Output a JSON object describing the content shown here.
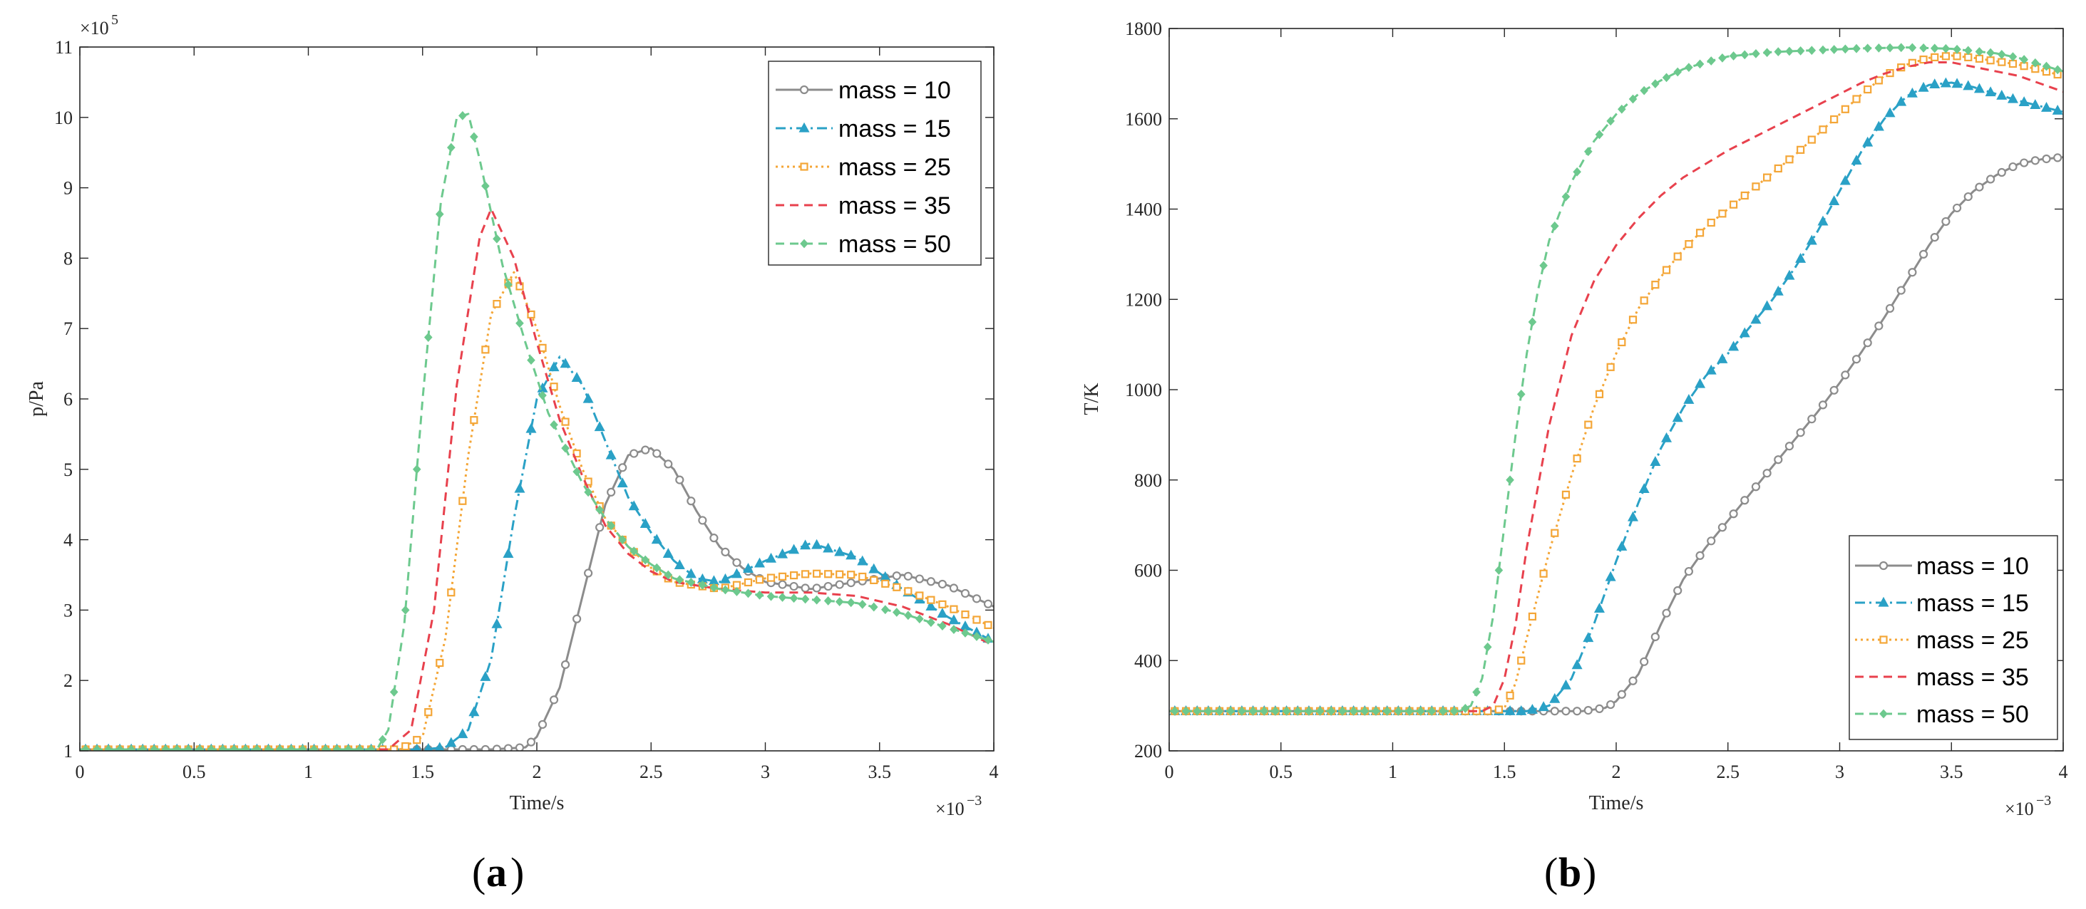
{
  "panels": [
    {
      "caption_open": "(",
      "caption_letter": "a",
      "caption_close": ")",
      "ylabel": "p/Pa",
      "xlabel": "Time/s",
      "x_exponent_base": "×10",
      "x_exponent": "−3",
      "y_exponent_base": "×10",
      "y_exponent": "5",
      "xlim": [
        0,
        4
      ],
      "ylim": [
        1,
        11
      ],
      "xticks": [
        0,
        0.5,
        1,
        1.5,
        2,
        2.5,
        3,
        3.5,
        4
      ],
      "xtick_labels": [
        "0",
        "0.5",
        "1",
        "1.5",
        "2",
        "2.5",
        "3",
        "3.5",
        "4"
      ],
      "yticks": [
        1,
        2,
        3,
        4,
        5,
        6,
        7,
        8,
        9,
        10,
        11
      ],
      "ytick_labels": [
        "1",
        "2",
        "3",
        "4",
        "5",
        "6",
        "7",
        "8",
        "9",
        "10",
        "11"
      ],
      "legend_position": "top-right"
    },
    {
      "caption_open": "(",
      "caption_letter": "b",
      "caption_close": ")",
      "ylabel": "T/K",
      "xlabel": "Time/s",
      "x_exponent_base": "×10",
      "x_exponent": "−3",
      "xlim": [
        0,
        4
      ],
      "ylim": [
        200,
        1800
      ],
      "xticks": [
        0,
        0.5,
        1,
        1.5,
        2,
        2.5,
        3,
        3.5,
        4
      ],
      "xtick_labels": [
        "0",
        "0.5",
        "1",
        "1.5",
        "2",
        "2.5",
        "3",
        "3.5",
        "4"
      ],
      "yticks": [
        200,
        400,
        600,
        800,
        1000,
        1200,
        1400,
        1600,
        1800
      ],
      "ytick_labels": [
        "200",
        "400",
        "600",
        "800",
        "1000",
        "1200",
        "1400",
        "1600",
        "1800"
      ],
      "legend_position": "bottom-right"
    }
  ],
  "series_styles": [
    {
      "name": "mass = 10",
      "color": "#8c8c8c",
      "dash": "",
      "marker": "circle"
    },
    {
      "name": "mass = 15",
      "color": "#2aa1c6",
      "dash": "dashdot",
      "marker": "triangle"
    },
    {
      "name": "mass = 25",
      "color": "#f4a637",
      "dash": "dotted",
      "marker": "square"
    },
    {
      "name": "mass = 35",
      "color": "#e8414d",
      "dash": "dashed",
      "marker": "none"
    },
    {
      "name": "mass = 50",
      "color": "#6dc98e",
      "dash": "dashed",
      "marker": "diamond"
    }
  ],
  "chart_data": [
    {
      "type": "line",
      "title": "",
      "xlabel": "Time/s (×10^-3)",
      "ylabel": "p/Pa (×10^5)",
      "xlim": [
        0,
        4
      ],
      "ylim": [
        1,
        11
      ],
      "grid": false,
      "series": [
        {
          "name": "mass = 10",
          "points": [
            [
              0,
              1.02
            ],
            [
              1.8,
              1.02
            ],
            [
              1.95,
              1.05
            ],
            [
              2.0,
              1.2
            ],
            [
              2.1,
              1.9
            ],
            [
              2.2,
              3.2
            ],
            [
              2.3,
              4.5
            ],
            [
              2.4,
              5.2
            ],
            [
              2.5,
              5.3
            ],
            [
              2.6,
              5.0
            ],
            [
              2.7,
              4.4
            ],
            [
              2.8,
              3.9
            ],
            [
              2.9,
              3.6
            ],
            [
              3.0,
              3.4
            ],
            [
              3.2,
              3.3
            ],
            [
              3.4,
              3.4
            ],
            [
              3.6,
              3.5
            ],
            [
              3.8,
              3.35
            ],
            [
              4.0,
              3.05
            ]
          ]
        },
        {
          "name": "mass = 15",
          "points": [
            [
              0,
              1.02
            ],
            [
              1.5,
              1.02
            ],
            [
              1.6,
              1.05
            ],
            [
              1.7,
              1.3
            ],
            [
              1.8,
              2.3
            ],
            [
              1.9,
              4.3
            ],
            [
              2.0,
              6.0
            ],
            [
              2.1,
              6.6
            ],
            [
              2.2,
              6.2
            ],
            [
              2.3,
              5.4
            ],
            [
              2.4,
              4.6
            ],
            [
              2.5,
              4.1
            ],
            [
              2.6,
              3.7
            ],
            [
              2.7,
              3.45
            ],
            [
              2.8,
              3.4
            ],
            [
              2.9,
              3.55
            ],
            [
              3.0,
              3.7
            ],
            [
              3.2,
              3.95
            ],
            [
              3.4,
              3.75
            ],
            [
              3.6,
              3.3
            ],
            [
              3.8,
              2.9
            ],
            [
              4.0,
              2.55
            ]
          ]
        },
        {
          "name": "mass = 25",
          "points": [
            [
              0,
              1.02
            ],
            [
              1.4,
              1.02
            ],
            [
              1.5,
              1.2
            ],
            [
              1.6,
              2.6
            ],
            [
              1.7,
              5.2
            ],
            [
              1.8,
              7.2
            ],
            [
              1.9,
              7.8
            ],
            [
              2.0,
              7.0
            ],
            [
              2.1,
              5.9
            ],
            [
              2.2,
              5.0
            ],
            [
              2.3,
              4.3
            ],
            [
              2.4,
              3.9
            ],
            [
              2.5,
              3.6
            ],
            [
              2.6,
              3.4
            ],
            [
              2.8,
              3.3
            ],
            [
              3.0,
              3.45
            ],
            [
              3.2,
              3.52
            ],
            [
              3.4,
              3.5
            ],
            [
              3.6,
              3.3
            ],
            [
              3.8,
              3.05
            ],
            [
              4.0,
              2.75
            ]
          ]
        },
        {
          "name": "mass = 35",
          "points": [
            [
              0,
              1.02
            ],
            [
              1.35,
              1.02
            ],
            [
              1.45,
              1.3
            ],
            [
              1.55,
              3.0
            ],
            [
              1.65,
              6.2
            ],
            [
              1.75,
              8.3
            ],
            [
              1.8,
              8.7
            ],
            [
              1.9,
              8.0
            ],
            [
              2.0,
              6.8
            ],
            [
              2.1,
              5.7
            ],
            [
              2.2,
              4.9
            ],
            [
              2.3,
              4.2
            ],
            [
              2.4,
              3.8
            ],
            [
              2.5,
              3.55
            ],
            [
              2.6,
              3.4
            ],
            [
              2.8,
              3.3
            ],
            [
              3.0,
              3.25
            ],
            [
              3.2,
              3.25
            ],
            [
              3.4,
              3.2
            ],
            [
              3.6,
              3.05
            ],
            [
              3.8,
              2.8
            ],
            [
              4.0,
              2.5
            ]
          ]
        },
        {
          "name": "mass = 50",
          "points": [
            [
              0,
              1.02
            ],
            [
              1.3,
              1.02
            ],
            [
              1.35,
              1.3
            ],
            [
              1.42,
              2.8
            ],
            [
              1.5,
              6.0
            ],
            [
              1.58,
              8.8
            ],
            [
              1.65,
              10.0
            ],
            [
              1.7,
              10.05
            ],
            [
              1.75,
              9.4
            ],
            [
              1.85,
              7.9
            ],
            [
              1.95,
              6.8
            ],
            [
              2.05,
              5.8
            ],
            [
              2.2,
              4.8
            ],
            [
              2.3,
              4.3
            ],
            [
              2.4,
              3.9
            ],
            [
              2.5,
              3.65
            ],
            [
              2.6,
              3.45
            ],
            [
              2.8,
              3.3
            ],
            [
              3.0,
              3.2
            ],
            [
              3.2,
              3.15
            ],
            [
              3.4,
              3.1
            ],
            [
              3.6,
              2.95
            ],
            [
              3.8,
              2.75
            ],
            [
              4.0,
              2.55
            ]
          ]
        }
      ]
    },
    {
      "type": "line",
      "title": "",
      "xlabel": "Time/s (×10^-3)",
      "ylabel": "T/K",
      "xlim": [
        0,
        4
      ],
      "ylim": [
        200,
        1800
      ],
      "grid": false,
      "series": [
        {
          "name": "mass = 10",
          "points": [
            [
              0,
              288
            ],
            [
              1.85,
              288
            ],
            [
              1.95,
              295
            ],
            [
              2.0,
              310
            ],
            [
              2.1,
              370
            ],
            [
              2.2,
              480
            ],
            [
              2.3,
              580
            ],
            [
              2.4,
              650
            ],
            [
              2.5,
              710
            ],
            [
              2.6,
              770
            ],
            [
              2.7,
              830
            ],
            [
              2.8,
              890
            ],
            [
              2.9,
              950
            ],
            [
              3.0,
              1015
            ],
            [
              3.1,
              1085
            ],
            [
              3.2,
              1160
            ],
            [
              3.3,
              1240
            ],
            [
              3.4,
              1320
            ],
            [
              3.5,
              1390
            ],
            [
              3.6,
              1440
            ],
            [
              3.7,
              1475
            ],
            [
              3.8,
              1500
            ],
            [
              3.9,
              1510
            ],
            [
              4.0,
              1515
            ]
          ]
        },
        {
          "name": "mass = 15",
          "points": [
            [
              0,
              288
            ],
            [
              1.6,
              288
            ],
            [
              1.7,
              300
            ],
            [
              1.8,
              360
            ],
            [
              1.9,
              480
            ],
            [
              2.0,
              620
            ],
            [
              2.1,
              750
            ],
            [
              2.2,
              870
            ],
            [
              2.3,
              960
            ],
            [
              2.4,
              1030
            ],
            [
              2.5,
              1080
            ],
            [
              2.6,
              1140
            ],
            [
              2.7,
              1200
            ],
            [
              2.8,
              1270
            ],
            [
              2.9,
              1350
            ],
            [
              3.0,
              1440
            ],
            [
              3.1,
              1530
            ],
            [
              3.2,
              1600
            ],
            [
              3.3,
              1650
            ],
            [
              3.4,
              1675
            ],
            [
              3.5,
              1680
            ],
            [
              3.6,
              1670
            ],
            [
              3.7,
              1655
            ],
            [
              3.8,
              1640
            ],
            [
              4.0,
              1615
            ]
          ]
        },
        {
          "name": "mass = 25",
          "points": [
            [
              0,
              288
            ],
            [
              1.45,
              288
            ],
            [
              1.5,
              295
            ],
            [
              1.55,
              350
            ],
            [
              1.6,
              450
            ],
            [
              1.7,
              640
            ],
            [
              1.8,
              810
            ],
            [
              1.9,
              960
            ],
            [
              2.0,
              1080
            ],
            [
              2.1,
              1180
            ],
            [
              2.2,
              1250
            ],
            [
              2.3,
              1310
            ],
            [
              2.4,
              1360
            ],
            [
              2.5,
              1400
            ],
            [
              2.6,
              1440
            ],
            [
              2.7,
              1480
            ],
            [
              2.8,
              1520
            ],
            [
              2.9,
              1565
            ],
            [
              3.0,
              1610
            ],
            [
              3.1,
              1655
            ],
            [
              3.2,
              1695
            ],
            [
              3.3,
              1720
            ],
            [
              3.4,
              1735
            ],
            [
              3.5,
              1740
            ],
            [
              3.6,
              1735
            ],
            [
              3.8,
              1720
            ],
            [
              4.0,
              1695
            ]
          ]
        },
        {
          "name": "mass = 35",
          "points": [
            [
              0,
              288
            ],
            [
              1.4,
              288
            ],
            [
              1.45,
              300
            ],
            [
              1.5,
              360
            ],
            [
              1.55,
              480
            ],
            [
              1.6,
              650
            ],
            [
              1.7,
              920
            ],
            [
              1.8,
              1120
            ],
            [
              1.9,
              1240
            ],
            [
              2.0,
              1320
            ],
            [
              2.1,
              1380
            ],
            [
              2.2,
              1430
            ],
            [
              2.3,
              1470
            ],
            [
              2.4,
              1500
            ],
            [
              2.5,
              1530
            ],
            [
              2.6,
              1555
            ],
            [
              2.7,
              1580
            ],
            [
              2.8,
              1605
            ],
            [
              2.9,
              1630
            ],
            [
              3.0,
              1655
            ],
            [
              3.1,
              1680
            ],
            [
              3.2,
              1700
            ],
            [
              3.3,
              1715
            ],
            [
              3.4,
              1725
            ],
            [
              3.5,
              1725
            ],
            [
              3.6,
              1715
            ],
            [
              3.8,
              1695
            ],
            [
              4.0,
              1660
            ]
          ]
        },
        {
          "name": "mass = 50",
          "points": [
            [
              0,
              288
            ],
            [
              1.3,
              288
            ],
            [
              1.35,
              300
            ],
            [
              1.4,
              360
            ],
            [
              1.45,
              500
            ],
            [
              1.5,
              700
            ],
            [
              1.55,
              900
            ],
            [
              1.6,
              1080
            ],
            [
              1.65,
              1220
            ],
            [
              1.7,
              1330
            ],
            [
              1.8,
              1460
            ],
            [
              1.9,
              1550
            ],
            [
              2.0,
              1610
            ],
            [
              2.1,
              1655
            ],
            [
              2.2,
              1685
            ],
            [
              2.3,
              1710
            ],
            [
              2.4,
              1725
            ],
            [
              2.5,
              1738
            ],
            [
              2.7,
              1748
            ],
            [
              2.9,
              1752
            ],
            [
              3.1,
              1756
            ],
            [
              3.3,
              1758
            ],
            [
              3.5,
              1755
            ],
            [
              3.7,
              1745
            ],
            [
              3.8,
              1735
            ],
            [
              3.9,
              1720
            ],
            [
              4.0,
              1705
            ]
          ]
        }
      ]
    }
  ]
}
